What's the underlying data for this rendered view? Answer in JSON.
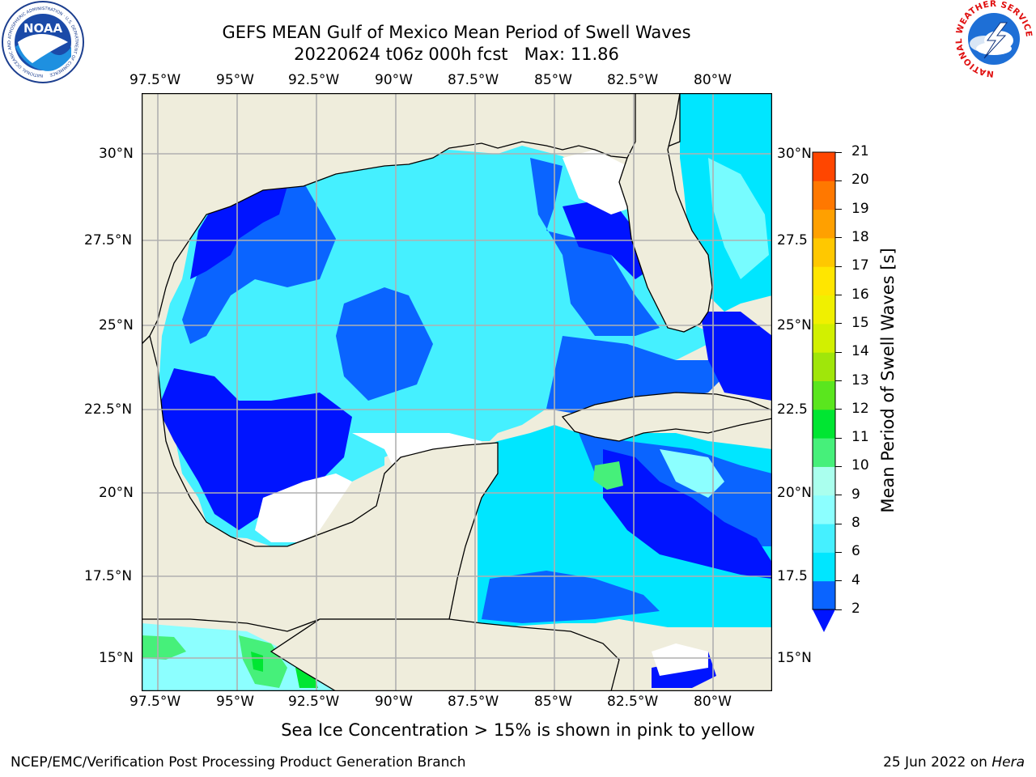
{
  "header": {
    "title_line1": "GEFS MEAN Gulf of Mexico Mean Period of Swell Waves",
    "title_line2": "20220624 t06z 000h fcst   Max: 11.86"
  },
  "logos": {
    "noaa_text": "NOAA",
    "noaa_ring_text": "NATIONAL OCEANIC AND ATMOSPHERIC ADMINISTRATION · U.S. DEPARTMENT OF COMMERCE",
    "nws_ring_text": "NATIONAL WEATHER SERVICE"
  },
  "map": {
    "lon_labels": [
      "97.5°W",
      "95°W",
      "92.5°W",
      "90°W",
      "87.5°W",
      "85°W",
      "82.5°W",
      "80°W"
    ],
    "lat_labels_left": [
      "30°N",
      "27.5°N",
      "25°N",
      "22.5°N",
      "20°N",
      "17.5°N",
      "15°N"
    ],
    "lat_labels_right": [
      "30°N",
      "27.5",
      "25°N",
      "22.5",
      "20°N",
      "17.5",
      "15°N"
    ],
    "colors": {
      "land": "#efeddc",
      "ocean_missing": "#ffffff",
      "grid": "#b0b0b0",
      "coast": "#000000"
    }
  },
  "colorbar": {
    "label": "Mean Period of Swell Waves [s]",
    "ticks": [
      "2",
      "4",
      "6",
      "8",
      "9",
      "10",
      "11",
      "12",
      "13",
      "14",
      "15",
      "16",
      "17",
      "18",
      "19",
      "20",
      "21"
    ],
    "colors": [
      "#0a64ff",
      "#00e6ff",
      "#45f0ff",
      "#8cffff",
      "#aaffee",
      "#46f07a",
      "#00e632",
      "#5ae61e",
      "#a0e60a",
      "#d2f000",
      "#f0f000",
      "#ffe600",
      "#ffc800",
      "#ffa000",
      "#ff7800",
      "#ff4600",
      "#ff1400"
    ],
    "under_color": "#0014ff"
  },
  "footer": {
    "note": "Sea Ice Concentration > 15% is shown in pink to yellow",
    "credit": "NCEP/EMC/Verification Post Processing Product Generation Branch",
    "date_prefix": "25 Jun 2022 on ",
    "machine": "Hera"
  }
}
